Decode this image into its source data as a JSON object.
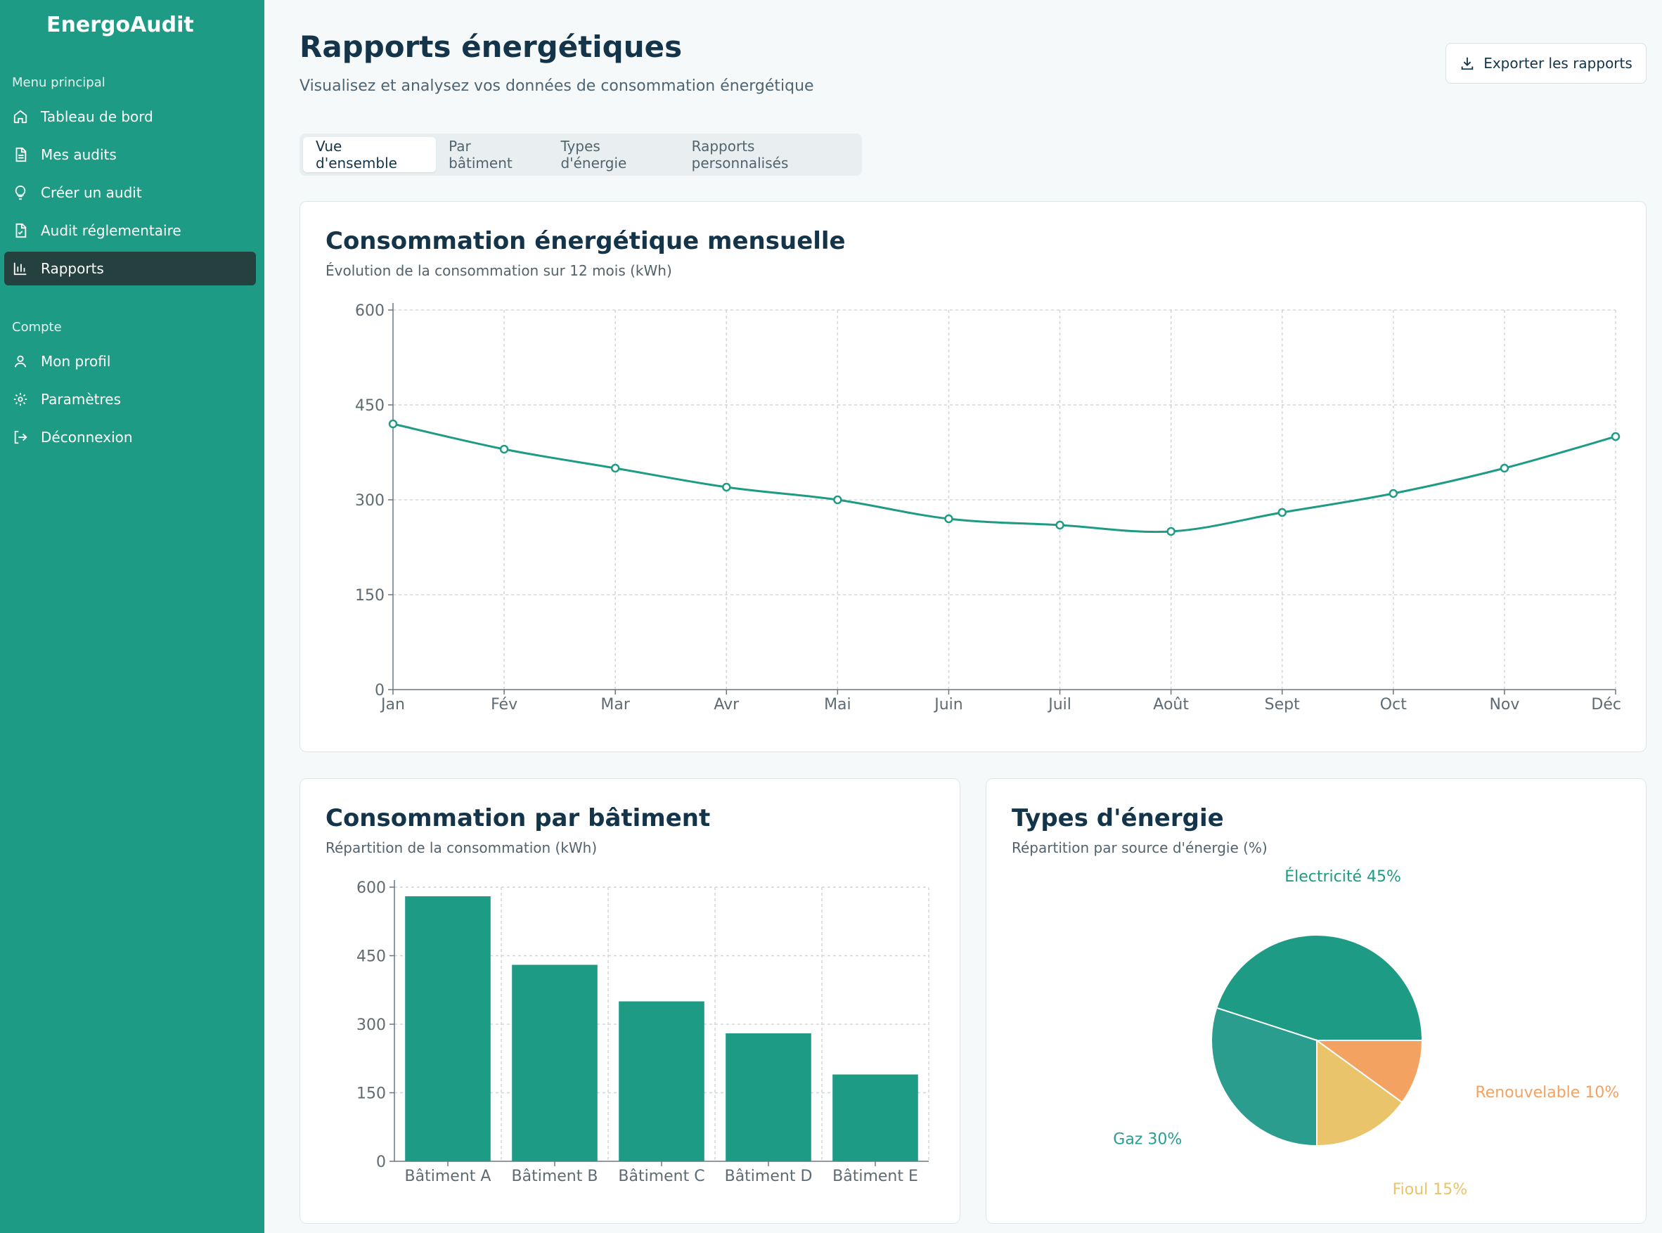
{
  "app": {
    "name": "EnergoAudit"
  },
  "sidebar": {
    "sections": [
      {
        "title": "Menu principal"
      },
      {
        "title": "Compte"
      }
    ],
    "items": [
      {
        "label": "Tableau de bord",
        "icon": "home-icon"
      },
      {
        "label": "Mes audits",
        "icon": "document-icon"
      },
      {
        "label": "Créer un audit",
        "icon": "lightbulb-icon"
      },
      {
        "label": "Audit réglementaire",
        "icon": "file-check-icon"
      },
      {
        "label": "Rapports",
        "icon": "bar-chart-icon",
        "active": true
      },
      {
        "label": "Mon profil",
        "icon": "user-icon"
      },
      {
        "label": "Paramètres",
        "icon": "gear-icon"
      },
      {
        "label": "Déconnexion",
        "icon": "logout-icon"
      }
    ]
  },
  "header": {
    "title": "Rapports énergétiques",
    "subtitle": "Visualisez et analysez vos données de consommation énergétique",
    "export_label": "Exporter les rapports"
  },
  "tabs": [
    {
      "label": "Vue d'ensemble",
      "active": true
    },
    {
      "label": "Par bâtiment"
    },
    {
      "label": "Types d'énergie"
    },
    {
      "label": "Rapports personnalisés"
    }
  ],
  "colors": {
    "primary": "#1e9b84",
    "teal_dark": "#2a9d8f",
    "yellow": "#e9c46a",
    "orange": "#f4a261",
    "sidebar_active": "#24403f"
  },
  "cards": {
    "monthly": {
      "title": "Consommation énergétique mensuelle",
      "subtitle": "Évolution de la consommation sur 12 mois (kWh)"
    },
    "buildings": {
      "title": "Consommation par bâtiment",
      "subtitle": "Répartition de la consommation (kWh)"
    },
    "energy": {
      "title": "Types d'énergie",
      "subtitle": "Répartition par source d'énergie (%)"
    }
  },
  "chart_data": [
    {
      "type": "line",
      "x": [
        "Jan",
        "Fév",
        "Mar",
        "Avr",
        "Mai",
        "Juin",
        "Juil",
        "Août",
        "Sept",
        "Oct",
        "Nov",
        "Déc"
      ],
      "series": [
        {
          "values": [
            420,
            380,
            350,
            320,
            300,
            270,
            260,
            250,
            280,
            310,
            350,
            400
          ]
        }
      ],
      "ylim": [
        0,
        600
      ],
      "yticks": [
        0,
        150,
        300,
        450,
        600
      ],
      "grid": true
    },
    {
      "type": "bar",
      "categories": [
        "Bâtiment A",
        "Bâtiment B",
        "Bâtiment C",
        "Bâtiment D",
        "Bâtiment E"
      ],
      "values": [
        580,
        430,
        350,
        280,
        190
      ],
      "ylim": [
        0,
        600
      ],
      "yticks": [
        0,
        150,
        300,
        450,
        600
      ],
      "grid": true
    },
    {
      "type": "pie",
      "slices": [
        {
          "label": "Électricité",
          "value": 45,
          "text": "Électricité 45%",
          "color": "#1e9b84"
        },
        {
          "label": "Renouvelable",
          "value": 10,
          "text": "Renouvelable 10%",
          "color": "#f4a261"
        },
        {
          "label": "Fioul",
          "value": 15,
          "text": "Fioul 15%",
          "color": "#e9c46a"
        },
        {
          "label": "Gaz",
          "value": 30,
          "text": "Gaz 30%",
          "color": "#2a9d8f"
        }
      ]
    }
  ]
}
